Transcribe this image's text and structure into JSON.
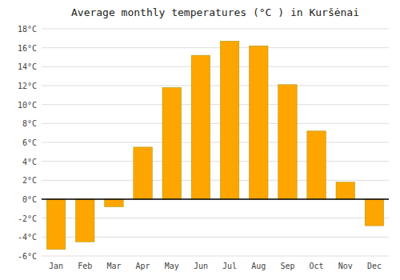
{
  "chart_data": {
    "type": "bar",
    "title": "Average monthly temperatures (°C ) in Kuršėnai",
    "categories": [
      "Jan",
      "Feb",
      "Mar",
      "Apr",
      "May",
      "Jun",
      "Jul",
      "Aug",
      "Sep",
      "Oct",
      "Nov",
      "Dec"
    ],
    "values": [
      -5.3,
      -4.5,
      -0.8,
      5.5,
      11.8,
      15.2,
      16.7,
      16.2,
      12.1,
      7.2,
      1.8,
      -2.8
    ],
    "color": "#FFA500",
    "ylim": [
      -6,
      18
    ],
    "yticks": [
      {
        "value": -6,
        "label": "-6°C"
      },
      {
        "value": -4,
        "label": "-4°C"
      },
      {
        "value": -2,
        "label": "-2°C"
      },
      {
        "value": 0,
        "label": "0°C"
      },
      {
        "value": 2,
        "label": "2°C"
      },
      {
        "value": 4,
        "label": "4°C"
      },
      {
        "value": 6,
        "label": "6°C"
      },
      {
        "value": 8,
        "label": "8°C"
      },
      {
        "value": 10,
        "label": "10°C"
      },
      {
        "value": 12,
        "label": "12°C"
      },
      {
        "value": 14,
        "label": "14°C"
      },
      {
        "value": 16,
        "label": "16°C"
      },
      {
        "value": 18,
        "label": "18°C"
      }
    ],
    "grid": true
  }
}
